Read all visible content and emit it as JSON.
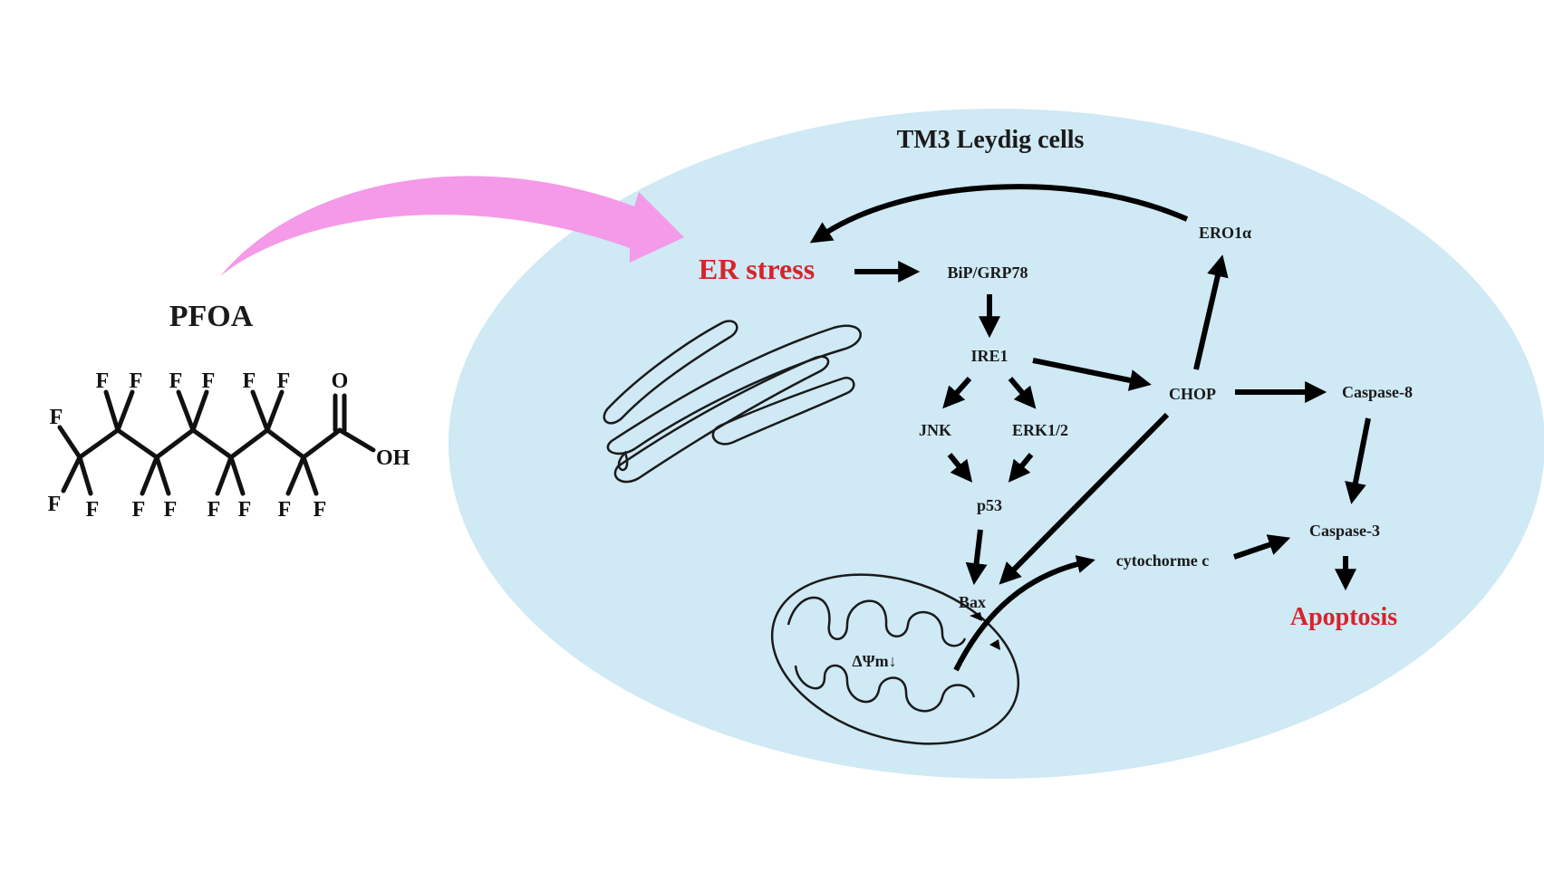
{
  "compound": {
    "name": "PFOA",
    "atoms": {
      "fluorine": "F",
      "oxygen": "O",
      "hydroxyl": "OH"
    }
  },
  "cell": {
    "title": "TM3 Leydig cells"
  },
  "nodes": {
    "er_stress": "ER stress",
    "bip": "BiP/GRP78",
    "ire1": "IRE1",
    "jnk": "JNK",
    "erk": "ERK1/2",
    "p53": "p53",
    "chop": "CHOP",
    "ero1a": "ERO1α",
    "caspase8": "Caspase-8",
    "caspase3": "Caspase-3",
    "cytochrome_c": "cytochorme c",
    "bax": "Bax",
    "delta_psi": "ΔΨm↓",
    "apoptosis": "Apoptosis"
  },
  "colors": {
    "cell_fill": "#cfe9f5",
    "exposure_arrow": "#f49ae8",
    "highlight_red": "#d6242c",
    "label_dark": "#1a1a1a"
  }
}
